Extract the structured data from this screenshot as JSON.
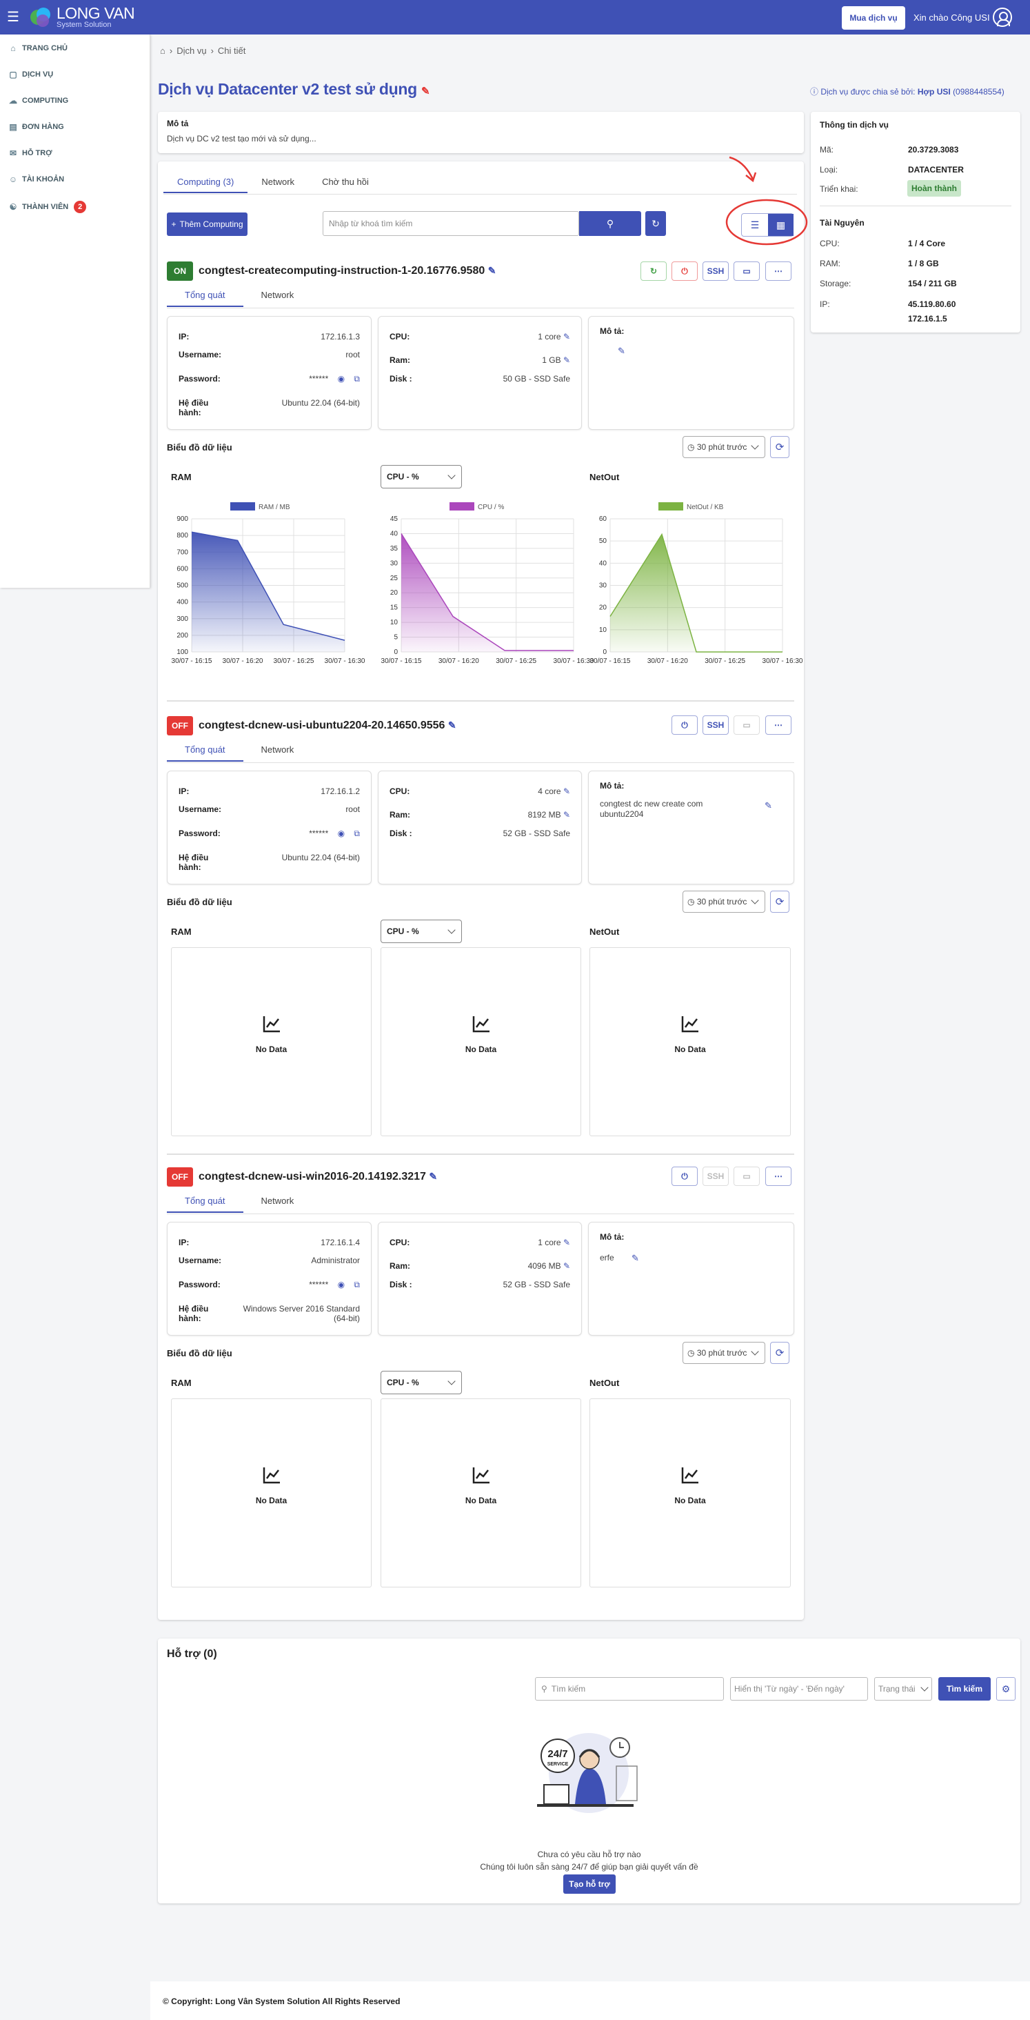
{
  "topbar": {
    "brand": "LONG VAN",
    "brand_sub": "System Solution",
    "buy_label": "Mua dịch vụ",
    "greeting": "Xin chào Công USI"
  },
  "sidebar": {
    "items": [
      {
        "label": "TRANG CHỦ",
        "icon": "home-icon"
      },
      {
        "label": "DỊCH VỤ",
        "icon": "cube-icon"
      },
      {
        "label": "COMPUTING",
        "icon": "cloud-icon"
      },
      {
        "label": "ĐƠN HÀNG",
        "icon": "cart-icon"
      },
      {
        "label": "HỖ TRỢ",
        "icon": "support-icon"
      },
      {
        "label": "TÀI KHOẢN",
        "icon": "user-icon"
      },
      {
        "label": "THÀNH VIÊN",
        "icon": "members-icon",
        "badge": "2"
      }
    ]
  },
  "breadcrumb": {
    "service": "Dịch vụ",
    "detail": "Chi tiết"
  },
  "page": {
    "title": "Dịch vụ Datacenter v2 test sử dụng",
    "shared_label": "Dịch vụ được chia sẻ bởi:",
    "shared_by": "Hợp USI",
    "shared_phone": "(0988448554)"
  },
  "description": {
    "heading": "Mô tả",
    "text": "Dịch vụ DC v2 test tạo mới và sử dụng..."
  },
  "main_tabs": [
    {
      "label": "Computing (3)"
    },
    {
      "label": "Network"
    },
    {
      "label": "Chờ thu hồi"
    }
  ],
  "toolbar": {
    "add_label": "Thêm Computing",
    "search_placeholder": "Nhập từ khoá tìm kiếm"
  },
  "service_info": {
    "heading": "Thông tin dịch vụ",
    "rows": [
      {
        "k": "Mã:",
        "v": "20.3729.3083"
      },
      {
        "k": "Loại:",
        "v": "DATACENTER"
      },
      {
        "k": "Triển khai:",
        "v": "Hoàn thành"
      }
    ],
    "resource_heading": "Tài Nguyên",
    "resources": [
      {
        "k": "CPU:",
        "v": "1 / 4 Core"
      },
      {
        "k": "RAM:",
        "v": "1 / 8 GB"
      },
      {
        "k": "Storage:",
        "v": "154 / 211 GB"
      },
      {
        "k": "IP:",
        "v": "45.119.80.60",
        "v2": "172.16.1.5"
      }
    ]
  },
  "labels": {
    "overview": "Tổng quát",
    "network": "Network",
    "ip": "IP:",
    "username": "Username:",
    "password": "Password:",
    "os": "Hệ điều hành:",
    "cpu": "CPU:",
    "ram": "Ram:",
    "disk": "Disk :",
    "desc": "Mô tả:",
    "chart_heading": "Biểu đồ dữ liệu",
    "period": "30 phút trước",
    "ram_chart": "RAM",
    "cpu_select": "CPU - %",
    "netout": "NetOut",
    "no_data": "No Data",
    "ssh": "SSH"
  },
  "computings": [
    {
      "status": "ON",
      "status_color": "#2e7d32",
      "name": "congtest-createcomputing-instruction-1-20.16776.9580",
      "ip": "172.16.1.3",
      "username": "root",
      "password": "******",
      "os": "Ubuntu 22.04 (64-bit)",
      "cpu": "1 core",
      "ram": "1 GB",
      "disk": "50 GB - SSD Safe",
      "desc": ""
    },
    {
      "status": "OFF",
      "status_color": "#e53935",
      "name": "congtest-dcnew-usi-ubuntu2204-20.14650.9556",
      "ip": "172.16.1.2",
      "username": "root",
      "password": "******",
      "os": "Ubuntu 22.04 (64-bit)",
      "cpu": "4 core",
      "ram": "8192 MB",
      "disk": "52 GB - SSD Safe",
      "desc": "congtest dc new create com ubuntu2204"
    },
    {
      "status": "OFF",
      "status_color": "#e53935",
      "name": "congtest-dcnew-usi-win2016-20.14192.3217",
      "ip": "172.16.1.4",
      "username": "Administrator",
      "password": "******",
      "os": "Windows Server 2016 Standard (64-bit)",
      "cpu": "1 core",
      "ram": "4096 MB",
      "disk": "52 GB - SSD Safe",
      "desc": "erfe"
    }
  ],
  "chart_data": [
    {
      "type": "area",
      "legend": "RAM / MB",
      "color": "#3f51b5",
      "x": [
        "30/07 - 16:15",
        "30/07 - 16:20",
        "30/07 - 16:25",
        "30/07 - 16:30"
      ],
      "y_ticks": [
        100,
        200,
        300,
        400,
        500,
        600,
        700,
        800,
        900
      ],
      "ylim": [
        100,
        900
      ],
      "points": [
        [
          0,
          820
        ],
        [
          0.3,
          770
        ],
        [
          0.6,
          265
        ],
        [
          1,
          170
        ]
      ]
    },
    {
      "type": "area",
      "legend": "CPU / %",
      "color": "#ab47bc",
      "x": [
        "30/07 - 16:15",
        "30/07 - 16:20",
        "30/07 - 16:25",
        "30/07 - 16:30"
      ],
      "y_ticks": [
        0,
        5,
        10,
        15,
        20,
        25,
        30,
        35,
        40,
        45
      ],
      "ylim": [
        0,
        45
      ],
      "points": [
        [
          0,
          40
        ],
        [
          0.3,
          12
        ],
        [
          0.6,
          0.5
        ],
        [
          1,
          0.5
        ]
      ]
    },
    {
      "type": "area",
      "legend": "NetOut / KB",
      "color": "#7cb342",
      "x": [
        "30/07 - 16:15",
        "30/07 - 16:20",
        "30/07 - 16:25",
        "30/07 - 16:30"
      ],
      "y_ticks": [
        0,
        10,
        20,
        30,
        40,
        50,
        60
      ],
      "ylim": [
        0,
        60
      ],
      "points": [
        [
          0,
          16
        ],
        [
          0.3,
          53
        ],
        [
          0.5,
          0
        ],
        [
          1,
          0
        ]
      ]
    }
  ],
  "support": {
    "heading": "Hỗ trợ (0)",
    "search_placeholder": "Tìm kiếm",
    "date_placeholder": "Hiển thị 'Từ ngày' - 'Đến ngày'",
    "status_placeholder": "Trạng thái",
    "search_btn": "Tìm kiếm",
    "empty1": "Chưa có yêu cầu hỗ trợ nào",
    "empty2": "Chúng tôi luôn sẵn sàng 24/7 để giúp bạn giải quyết vấn đề",
    "create_btn": "Tạo hỗ trợ",
    "badge_247": "24/7",
    "badge_service": "SERVICE"
  },
  "footer": {
    "text": "© Copyright: Long Vân System Solution All Rights Reserved"
  }
}
